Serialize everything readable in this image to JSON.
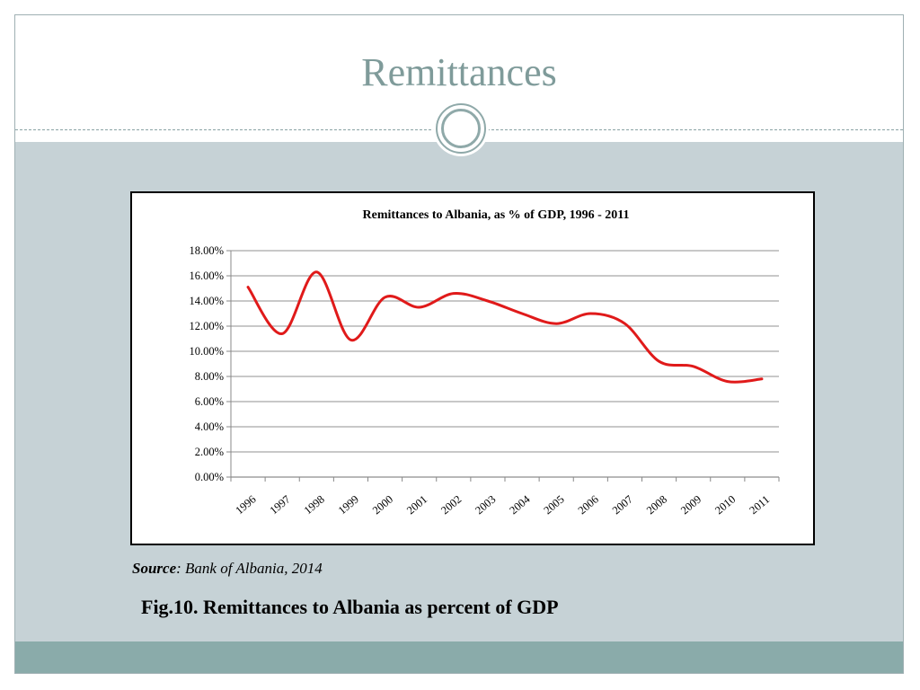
{
  "slide": {
    "title": "Remittances"
  },
  "source": {
    "label": "Source",
    "text": ": Bank of Albania, 2014"
  },
  "figure": {
    "caption": "Fig.10. Remittances to Albania as percent of GDP"
  },
  "colors": {
    "line": "#e01a1a",
    "title": "#7f9b9a",
    "background": "#c6d2d6",
    "bottom_bar": "#8aabaa"
  },
  "chart_data": {
    "type": "line",
    "title": "Remittances  to Albania, as % of GDP, 1996 - 2011",
    "xlabel": "",
    "ylabel": "",
    "categories": [
      "1996",
      "1997",
      "1998",
      "1999",
      "2000",
      "2001",
      "2002",
      "2003",
      "2004",
      "2005",
      "2006",
      "2007",
      "2008",
      "2009",
      "2010",
      "2011"
    ],
    "series": [
      {
        "values": [
          15.1,
          11.4,
          16.3,
          10.9,
          14.3,
          13.5,
          14.6,
          14.0,
          13.0,
          12.2,
          13.0,
          12.2,
          9.2,
          8.8,
          7.6,
          7.8
        ]
      }
    ],
    "ylim": [
      0,
      18
    ],
    "yticks": [
      "0.00%",
      "2.00%",
      "4.00%",
      "6.00%",
      "8.00%",
      "10.00%",
      "12.00%",
      "14.00%",
      "16.00%",
      "18.00%"
    ],
    "grid": true,
    "legend": "none",
    "smooth": true
  }
}
